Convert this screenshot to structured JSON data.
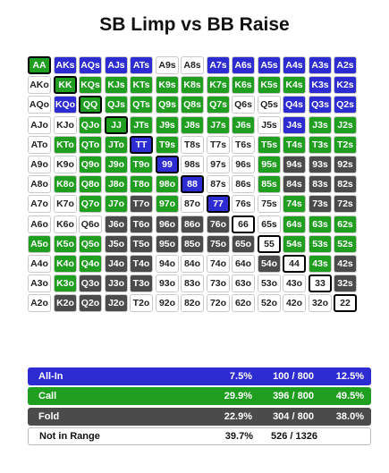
{
  "title": "SB Limp vs BB Raise",
  "colors": {
    "allin": "#2d2bd2",
    "call": "#1f9e1f",
    "fold": "#4b4b4b",
    "none": "#ffffff",
    "highlight_border": "#000000"
  },
  "grid": {
    "rows": [
      [
        [
          "AA",
          "call",
          true
        ],
        [
          "AKs",
          "allin",
          false
        ],
        [
          "AQs",
          "allin",
          false
        ],
        [
          "AJs",
          "allin",
          false
        ],
        [
          "ATs",
          "allin",
          false
        ],
        [
          "A9s",
          "none",
          false
        ],
        [
          "A8s",
          "none",
          false
        ],
        [
          "A7s",
          "allin",
          false
        ],
        [
          "A6s",
          "allin",
          false
        ],
        [
          "A5s",
          "allin",
          false
        ],
        [
          "A4s",
          "allin",
          false
        ],
        [
          "A3s",
          "allin",
          false
        ],
        [
          "A2s",
          "allin",
          false
        ]
      ],
      [
        [
          "AKo",
          "none",
          false
        ],
        [
          "KK",
          "call",
          true
        ],
        [
          "KQs",
          "call",
          false
        ],
        [
          "KJs",
          "call",
          false
        ],
        [
          "KTs",
          "call",
          false
        ],
        [
          "K9s",
          "call",
          false
        ],
        [
          "K8s",
          "call",
          false
        ],
        [
          "K7s",
          "call",
          false
        ],
        [
          "K6s",
          "call",
          false
        ],
        [
          "K5s",
          "call",
          false
        ],
        [
          "K4s",
          "call",
          false
        ],
        [
          "K3s",
          "allin",
          false
        ],
        [
          "K2s",
          "allin",
          false
        ]
      ],
      [
        [
          "AQo",
          "none",
          false
        ],
        [
          "KQo",
          "allin",
          false
        ],
        [
          "QQ",
          "call",
          true
        ],
        [
          "QJs",
          "call",
          false
        ],
        [
          "QTs",
          "call",
          false
        ],
        [
          "Q9s",
          "call",
          false
        ],
        [
          "Q8s",
          "call",
          false
        ],
        [
          "Q7s",
          "call",
          false
        ],
        [
          "Q6s",
          "none",
          false
        ],
        [
          "Q5s",
          "none",
          false
        ],
        [
          "Q4s",
          "allin",
          false
        ],
        [
          "Q3s",
          "allin",
          false
        ],
        [
          "Q2s",
          "allin",
          false
        ]
      ],
      [
        [
          "AJo",
          "none",
          false
        ],
        [
          "KJo",
          "none",
          false
        ],
        [
          "QJo",
          "call",
          false
        ],
        [
          "JJ",
          "call",
          true
        ],
        [
          "JTs",
          "call",
          false
        ],
        [
          "J9s",
          "call",
          false
        ],
        [
          "J8s",
          "call",
          false
        ],
        [
          "J7s",
          "call",
          false
        ],
        [
          "J6s",
          "call",
          false
        ],
        [
          "J5s",
          "none",
          false
        ],
        [
          "J4s",
          "allin",
          false
        ],
        [
          "J3s",
          "call",
          false
        ],
        [
          "J2s",
          "call",
          false
        ]
      ],
      [
        [
          "ATo",
          "none",
          false
        ],
        [
          "KTo",
          "call",
          false
        ],
        [
          "QTo",
          "call",
          false
        ],
        [
          "JTo",
          "call",
          false
        ],
        [
          "TT",
          "allin",
          true
        ],
        [
          "T9s",
          "call",
          false
        ],
        [
          "T8s",
          "none",
          false
        ],
        [
          "T7s",
          "none",
          false
        ],
        [
          "T6s",
          "none",
          false
        ],
        [
          "T5s",
          "call",
          false
        ],
        [
          "T4s",
          "call",
          false
        ],
        [
          "T3s",
          "call",
          false
        ],
        [
          "T2s",
          "call",
          false
        ]
      ],
      [
        [
          "A9o",
          "none",
          false
        ],
        [
          "K9o",
          "none",
          false
        ],
        [
          "Q9o",
          "call",
          false
        ],
        [
          "J9o",
          "call",
          false
        ],
        [
          "T9o",
          "call",
          false
        ],
        [
          "99",
          "allin",
          true
        ],
        [
          "98s",
          "none",
          false
        ],
        [
          "97s",
          "none",
          false
        ],
        [
          "96s",
          "none",
          false
        ],
        [
          "95s",
          "call",
          false
        ],
        [
          "94s",
          "fold",
          false
        ],
        [
          "93s",
          "fold",
          false
        ],
        [
          "92s",
          "fold",
          false
        ]
      ],
      [
        [
          "A8o",
          "none",
          false
        ],
        [
          "K8o",
          "call",
          false
        ],
        [
          "Q8o",
          "call",
          false
        ],
        [
          "J8o",
          "call",
          false
        ],
        [
          "T8o",
          "call",
          false
        ],
        [
          "98o",
          "call",
          false
        ],
        [
          "88",
          "allin",
          true
        ],
        [
          "87s",
          "none",
          false
        ],
        [
          "86s",
          "none",
          false
        ],
        [
          "85s",
          "call",
          false
        ],
        [
          "84s",
          "fold",
          false
        ],
        [
          "83s",
          "fold",
          false
        ],
        [
          "82s",
          "fold",
          false
        ]
      ],
      [
        [
          "A7o",
          "none",
          false
        ],
        [
          "K7o",
          "none",
          false
        ],
        [
          "Q7o",
          "call",
          false
        ],
        [
          "J7o",
          "call",
          false
        ],
        [
          "T7o",
          "fold",
          false
        ],
        [
          "97o",
          "call",
          false
        ],
        [
          "87o",
          "none",
          false
        ],
        [
          "77",
          "allin",
          true
        ],
        [
          "76s",
          "none",
          false
        ],
        [
          "75s",
          "none",
          false
        ],
        [
          "74s",
          "call",
          false
        ],
        [
          "73s",
          "fold",
          false
        ],
        [
          "72s",
          "fold",
          false
        ]
      ],
      [
        [
          "A6o",
          "none",
          false
        ],
        [
          "K6o",
          "none",
          false
        ],
        [
          "Q6o",
          "none",
          false
        ],
        [
          "J6o",
          "fold",
          false
        ],
        [
          "T6o",
          "fold",
          false
        ],
        [
          "96o",
          "fold",
          false
        ],
        [
          "86o",
          "fold",
          false
        ],
        [
          "76o",
          "fold",
          false
        ],
        [
          "66",
          "none",
          true
        ],
        [
          "65s",
          "none",
          false
        ],
        [
          "64s",
          "call",
          false
        ],
        [
          "63s",
          "call",
          false
        ],
        [
          "62s",
          "call",
          false
        ]
      ],
      [
        [
          "A5o",
          "call",
          false
        ],
        [
          "K5o",
          "call",
          false
        ],
        [
          "Q5o",
          "call",
          false
        ],
        [
          "J5o",
          "fold",
          false
        ],
        [
          "T5o",
          "fold",
          false
        ],
        [
          "95o",
          "fold",
          false
        ],
        [
          "85o",
          "fold",
          false
        ],
        [
          "75o",
          "fold",
          false
        ],
        [
          "65o",
          "fold",
          false
        ],
        [
          "55",
          "none",
          true
        ],
        [
          "54s",
          "call",
          false
        ],
        [
          "53s",
          "call",
          false
        ],
        [
          "52s",
          "call",
          false
        ]
      ],
      [
        [
          "A4o",
          "none",
          false
        ],
        [
          "K4o",
          "call",
          false
        ],
        [
          "Q4o",
          "call",
          false
        ],
        [
          "J4o",
          "fold",
          false
        ],
        [
          "T4o",
          "fold",
          false
        ],
        [
          "94o",
          "none",
          false
        ],
        [
          "84o",
          "none",
          false
        ],
        [
          "74o",
          "none",
          false
        ],
        [
          "64o",
          "none",
          false
        ],
        [
          "54o",
          "fold",
          false
        ],
        [
          "44",
          "none",
          true
        ],
        [
          "43s",
          "call",
          false
        ],
        [
          "42s",
          "fold",
          false
        ]
      ],
      [
        [
          "A3o",
          "none",
          false
        ],
        [
          "K3o",
          "call",
          false
        ],
        [
          "Q3o",
          "fold",
          false
        ],
        [
          "J3o",
          "fold",
          false
        ],
        [
          "T3o",
          "fold",
          false
        ],
        [
          "93o",
          "none",
          false
        ],
        [
          "83o",
          "none",
          false
        ],
        [
          "73o",
          "none",
          false
        ],
        [
          "63o",
          "none",
          false
        ],
        [
          "53o",
          "none",
          false
        ],
        [
          "43o",
          "none",
          false
        ],
        [
          "33",
          "none",
          true
        ],
        [
          "32s",
          "fold",
          false
        ]
      ],
      [
        [
          "A2o",
          "none",
          false
        ],
        [
          "K2o",
          "fold",
          false
        ],
        [
          "Q2o",
          "fold",
          false
        ],
        [
          "J2o",
          "fold",
          false
        ],
        [
          "T2o",
          "none",
          false
        ],
        [
          "92o",
          "none",
          false
        ],
        [
          "82o",
          "none",
          false
        ],
        [
          "72o",
          "none",
          false
        ],
        [
          "62o",
          "none",
          false
        ],
        [
          "52o",
          "none",
          false
        ],
        [
          "42o",
          "none",
          false
        ],
        [
          "32o",
          "none",
          false
        ],
        [
          "22",
          "none",
          true
        ]
      ]
    ]
  },
  "summary": [
    {
      "label": "All-In",
      "pct": "7.5%",
      "combos": "100 / 800",
      "total_pct": "12.5%",
      "type": "allin"
    },
    {
      "label": "Call",
      "pct": "29.9%",
      "combos": "396 / 800",
      "total_pct": "49.5%",
      "type": "call"
    },
    {
      "label": "Fold",
      "pct": "22.9%",
      "combos": "304 / 800",
      "total_pct": "38.0%",
      "type": "fold"
    },
    {
      "label": "Not in Range",
      "pct": "39.7%",
      "combos": "526 / 1326",
      "total_pct": "",
      "type": "none"
    }
  ]
}
